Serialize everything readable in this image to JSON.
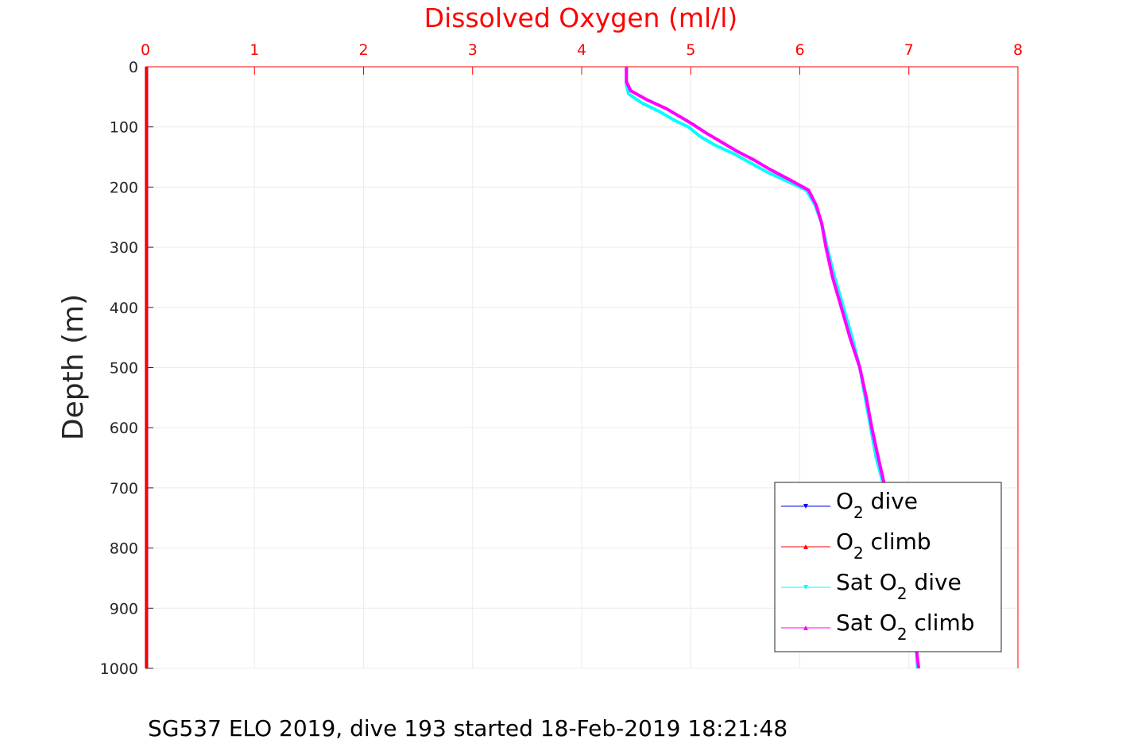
{
  "chart_data": {
    "type": "line",
    "title": "Dissolved Oxygen (ml/l)",
    "ylabel": "Depth (m)",
    "xlabel": "",
    "xlim": [
      0,
      8
    ],
    "ylim": [
      0,
      1000
    ],
    "y_reversed": true,
    "x_axis_position": "top",
    "grid": true,
    "xticks": [
      "0",
      "1",
      "2",
      "3",
      "4",
      "5",
      "6",
      "7",
      "8"
    ],
    "yticks": [
      "0",
      "100",
      "200",
      "300",
      "400",
      "500",
      "600",
      "700",
      "800",
      "900",
      "1000"
    ],
    "legend_position": "bottom-right",
    "series": [
      {
        "name": "O2 dive",
        "legend_main": "O",
        "legend_sub": "2",
        "legend_post": " dive",
        "color": "#0000ff",
        "marker": "triangle-down",
        "points": [
          [
            0.01,
            0
          ],
          [
            0.01,
            1000
          ]
        ]
      },
      {
        "name": "O2 climb",
        "legend_main": "O",
        "legend_sub": "2",
        "legend_post": " climb",
        "color": "#ff0000",
        "marker": "triangle-up",
        "points": [
          [
            0.01,
            0
          ],
          [
            0.01,
            250
          ],
          [
            0.01,
            500
          ],
          [
            0.01,
            750
          ],
          [
            0.01,
            1000
          ]
        ]
      },
      {
        "name": "Sat O2 dive",
        "legend_pre": "Sat O",
        "legend_sub": "2",
        "legend_post": " dive",
        "color": "#00ffff",
        "marker": "triangle-down",
        "points": [
          [
            4.41,
            0
          ],
          [
            4.41,
            30
          ],
          [
            4.43,
            45
          ],
          [
            4.55,
            60
          ],
          [
            4.72,
            75
          ],
          [
            4.86,
            90
          ],
          [
            4.98,
            100
          ],
          [
            5.08,
            115
          ],
          [
            5.22,
            130
          ],
          [
            5.4,
            145
          ],
          [
            5.55,
            160
          ],
          [
            5.7,
            175
          ],
          [
            5.88,
            190
          ],
          [
            6.06,
            205
          ],
          [
            6.14,
            230
          ],
          [
            6.2,
            260
          ],
          [
            6.25,
            300
          ],
          [
            6.32,
            350
          ],
          [
            6.4,
            400
          ],
          [
            6.48,
            450
          ],
          [
            6.55,
            500
          ],
          [
            6.6,
            550
          ],
          [
            6.65,
            600
          ],
          [
            6.7,
            650
          ],
          [
            6.76,
            690
          ],
          [
            6.82,
            730
          ],
          [
            6.88,
            780
          ],
          [
            6.93,
            830
          ],
          [
            6.98,
            880
          ],
          [
            7.03,
            930
          ],
          [
            7.07,
            970
          ],
          [
            7.08,
            1000
          ]
        ]
      },
      {
        "name": "Sat O2 climb",
        "legend_pre": "Sat O",
        "legend_sub": "2",
        "legend_post": " climb",
        "color": "#ff00ff",
        "marker": "triangle-up",
        "points": [
          [
            4.41,
            0
          ],
          [
            4.41,
            25
          ],
          [
            4.45,
            40
          ],
          [
            4.6,
            55
          ],
          [
            4.78,
            70
          ],
          [
            4.92,
            85
          ],
          [
            5.03,
            97
          ],
          [
            5.14,
            110
          ],
          [
            5.28,
            125
          ],
          [
            5.42,
            140
          ],
          [
            5.58,
            155
          ],
          [
            5.72,
            170
          ],
          [
            5.9,
            187
          ],
          [
            6.08,
            205
          ],
          [
            6.15,
            230
          ],
          [
            6.2,
            260
          ],
          [
            6.24,
            300
          ],
          [
            6.3,
            350
          ],
          [
            6.38,
            400
          ],
          [
            6.46,
            450
          ],
          [
            6.55,
            500
          ],
          [
            6.61,
            550
          ],
          [
            6.66,
            600
          ],
          [
            6.72,
            650
          ],
          [
            6.77,
            690
          ],
          [
            6.82,
            730
          ],
          [
            6.87,
            780
          ],
          [
            6.92,
            830
          ],
          [
            6.97,
            880
          ],
          [
            7.02,
            930
          ],
          [
            7.07,
            970
          ],
          [
            7.09,
            1000
          ]
        ]
      }
    ]
  },
  "caption": "SG537 ELO 2019, dive 193 started 18-Feb-2019 18:21:48"
}
